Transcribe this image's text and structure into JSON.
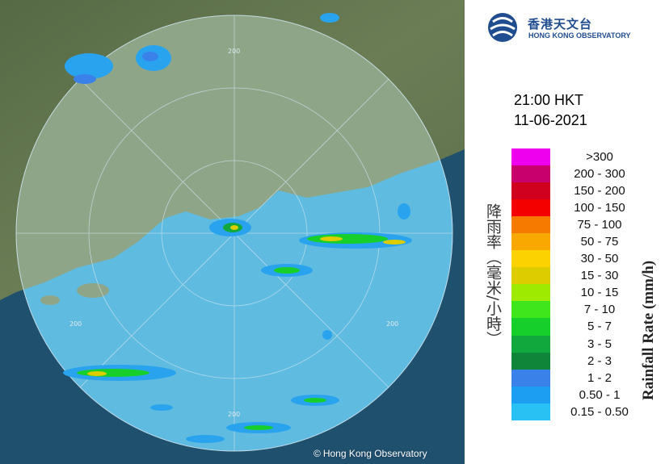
{
  "header": {
    "logo_cn": "香港天文台",
    "logo_en": "HONG KONG OBSERVATORY",
    "logo_icon": "observatory-emblem-icon"
  },
  "timestamp": {
    "time": "21:00 HKT",
    "date": "11-06-2021"
  },
  "map": {
    "range_rings": [
      "200",
      "200",
      "200",
      "200"
    ],
    "copyright_symbol": "©",
    "copyright_text": "Hong Kong Observatory"
  },
  "legend": {
    "title_cn": "降雨率（毫米/小時）",
    "title_en": "Rainfall Rate (mm/h)",
    "levels": [
      {
        "label": ">300",
        "color": "#ee00ee"
      },
      {
        "label": "200 - 300",
        "color": "#c8006e"
      },
      {
        "label": "150 - 200",
        "color": "#d0001f"
      },
      {
        "label": "100 - 150",
        "color": "#f50000"
      },
      {
        "label": "75 - 100",
        "color": "#f77a00"
      },
      {
        "label": "50 - 75",
        "color": "#f8a800"
      },
      {
        "label": "30 - 50",
        "color": "#fcd300"
      },
      {
        "label": "15 - 30",
        "color": "#dccc00"
      },
      {
        "label": "10 - 15",
        "color": "#9eea00"
      },
      {
        "label": "7 - 10",
        "color": "#3fe61c"
      },
      {
        "label": "5 - 7",
        "color": "#16cf2a"
      },
      {
        "label": "3 - 5",
        "color": "#11a83d"
      },
      {
        "label": "2 - 3",
        "color": "#0e8538"
      },
      {
        "label": "1 - 2",
        "color": "#3a82ea"
      },
      {
        "label": "0.50 - 1",
        "color": "#1c9ef2"
      },
      {
        "label": "0.15 - 0.50",
        "color": "#29c0f4"
      }
    ]
  }
}
